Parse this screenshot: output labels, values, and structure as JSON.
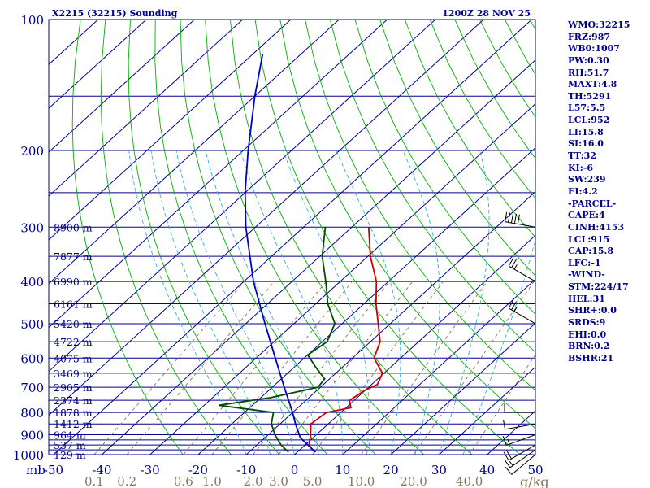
{
  "chart_data": {
    "type": "skew-t log-p sounding",
    "title": "X2215 (32215) Sounding",
    "valid_time": "1200Z 28 NOV 25",
    "pressure_axis": {
      "unit": "mb",
      "range": [
        1000,
        100
      ],
      "ticks": [
        100,
        200,
        300,
        400,
        500,
        600,
        700,
        800,
        900,
        1000
      ]
    },
    "isobar_levels": [
      100,
      150,
      200,
      250,
      300,
      350,
      400,
      450,
      500,
      550,
      600,
      650,
      700,
      750,
      800,
      850,
      900,
      925,
      950,
      975,
      1000
    ],
    "temperature_axis": {
      "unit": "°C",
      "range": [
        -50,
        50
      ],
      "ticks": [
        {
          "value": -50,
          "label": "-50"
        },
        {
          "value": -40,
          "label": "-40"
        },
        {
          "value": -30,
          "label": "-30"
        },
        {
          "value": -20,
          "label": "-20"
        },
        {
          "value": -10,
          "label": "-10"
        },
        {
          "value": 0,
          "label": "0"
        },
        {
          "value": 10,
          "label": "10"
        },
        {
          "value": 20,
          "label": "20"
        },
        {
          "value": 30,
          "label": "30"
        },
        {
          "value": 40,
          "label": "40"
        },
        {
          "value": 50,
          "label": "50"
        }
      ]
    },
    "mixing_ratio_axis": {
      "unit": "g/kg",
      "labels": [
        "0.1",
        "0.2",
        "0.6",
        "1.0",
        "2.0",
        "3.0",
        "5.0",
        "10.0",
        "20.0",
        "40.0"
      ]
    },
    "height_labels": [
      {
        "p": 300,
        "label": "8900 m"
      },
      {
        "p": 350,
        "label": "7877 m"
      },
      {
        "p": 400,
        "label": "6990 m"
      },
      {
        "p": 450,
        "label": "6161 m"
      },
      {
        "p": 500,
        "label": "5420 m"
      },
      {
        "p": 550,
        "label": "4722 m"
      },
      {
        "p": 600,
        "label": "4075 m"
      },
      {
        "p": 650,
        "label": "3469 m"
      },
      {
        "p": 700,
        "label": "2905 m"
      },
      {
        "p": 750,
        "label": "2374 m"
      },
      {
        "p": 800,
        "label": "1878 m"
      },
      {
        "p": 850,
        "label": "1412 m"
      },
      {
        "p": 900,
        "label": "964 m"
      },
      {
        "p": 950,
        "label": "537 m"
      },
      {
        "p": 1000,
        "label": "129 m"
      }
    ],
    "series": [
      {
        "name": "Temperature",
        "color": "#cc0000",
        "points": [
          {
            "p": 987,
            "t": 3.6
          },
          {
            "p": 950,
            "t": 0.8
          },
          {
            "p": 900,
            "t": -1.2
          },
          {
            "p": 850,
            "t": -3.6
          },
          {
            "p": 800,
            "t": -3.0
          },
          {
            "p": 780,
            "t": 1.0
          },
          {
            "p": 750,
            "t": -1.0
          },
          {
            "p": 710,
            "t": 0.0
          },
          {
            "p": 690,
            "t": 1.2
          },
          {
            "p": 650,
            "t": -0.3
          },
          {
            "p": 600,
            "t": -5.5
          },
          {
            "p": 550,
            "t": -8.0
          },
          {
            "p": 500,
            "t": -12.5
          },
          {
            "p": 450,
            "t": -17.5
          },
          {
            "p": 400,
            "t": -22.5
          },
          {
            "p": 350,
            "t": -29.5
          },
          {
            "p": 300,
            "t": -36.5
          }
        ]
      },
      {
        "name": "Dew point",
        "color": "#004d00",
        "points": [
          {
            "p": 987,
            "td": -1.8
          },
          {
            "p": 950,
            "td": -5.0
          },
          {
            "p": 900,
            "td": -8.6
          },
          {
            "p": 850,
            "td": -11.8
          },
          {
            "p": 800,
            "td": -14.0
          },
          {
            "p": 770,
            "td": -27.0
          },
          {
            "p": 740,
            "td": -18.0
          },
          {
            "p": 700,
            "td": -10.5
          },
          {
            "p": 670,
            "td": -11.0
          },
          {
            "p": 630,
            "td": -15.5
          },
          {
            "p": 590,
            "td": -20.0
          },
          {
            "p": 550,
            "td": -19.0
          },
          {
            "p": 500,
            "td": -21.5
          },
          {
            "p": 450,
            "td": -27.5
          },
          {
            "p": 400,
            "td": -33.0
          },
          {
            "p": 350,
            "td": -39.5
          },
          {
            "p": 300,
            "td": -45.5
          }
        ]
      },
      {
        "name": "Parcel path",
        "color": "#0000cc",
        "points": [
          {
            "p": 987,
            "t": 3.8
          },
          {
            "p": 915,
            "t": -2.6
          },
          {
            "p": 850,
            "t": -6.8
          },
          {
            "p": 800,
            "t": -10.0
          },
          {
            "p": 700,
            "t": -17.5
          },
          {
            "p": 600,
            "t": -26.0
          },
          {
            "p": 500,
            "t": -36.0
          },
          {
            "p": 400,
            "t": -48.0
          },
          {
            "p": 300,
            "t": -62.0
          },
          {
            "p": 250,
            "t": -70.0
          },
          {
            "p": 200,
            "t": -79.0
          },
          {
            "p": 150,
            "t": -90.0
          },
          {
            "p": 120,
            "t": -98.0
          }
        ]
      }
    ],
    "wind_barbs": [
      {
        "p": 1000,
        "dir": 230,
        "kt": 10
      },
      {
        "p": 975,
        "dir": 235,
        "kt": 15
      },
      {
        "p": 950,
        "dir": 240,
        "kt": 20
      },
      {
        "p": 900,
        "dir": 250,
        "kt": 15
      },
      {
        "p": 850,
        "dir": 260,
        "kt": 10
      },
      {
        "p": 800,
        "dir": 270,
        "kt": 10
      },
      {
        "p": 500,
        "dir": 300,
        "kt": 25
      },
      {
        "p": 400,
        "dir": 300,
        "kt": 25
      },
      {
        "p": 300,
        "dir": 280,
        "kt": 50
      }
    ],
    "colors": {
      "isobar": "#00008b",
      "isotherm": "#00008b",
      "dry_adiabat": "#00b000",
      "moist_adiabat": "#33b0d8",
      "mixing_ratio": "#8b7355",
      "frame": "#00008b"
    }
  },
  "indices": [
    "WMO:32215",
    "FRZ:987",
    "WB0:1007",
    "PW:0.30",
    "RH:51.7",
    "MAXT:4.8",
    "TH:5291",
    "L57:5.5",
    "LCL:952",
    "LI:15.8",
    "SI:16.0",
    "TT:32",
    "KI:-6",
    "SW:239",
    "EI:4.2",
    "-PARCEL-",
    "CAPE:4",
    "CINH:4153",
    "LCL:915",
    "CAP:15.8",
    "LFC:-1",
    "-WIND-",
    "STM:224/17",
    "HEL:31",
    "SHR+:0.0",
    "SRDS:9",
    "EHI:0.0",
    "BRN:0.2",
    "BSHR:21"
  ]
}
